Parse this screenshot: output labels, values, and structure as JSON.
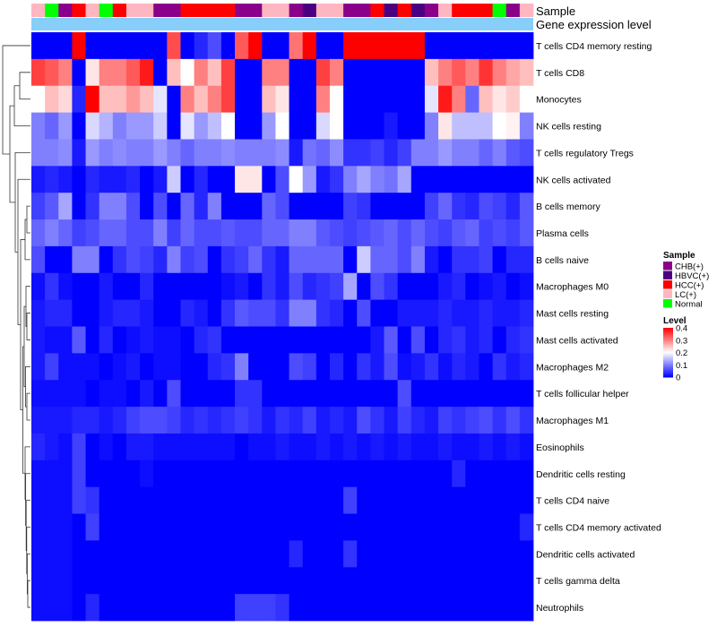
{
  "chart_data": {
    "type": "heatmap",
    "title": "",
    "annotation_tracks": [
      {
        "name": "Sample",
        "values": [
          "LC(+)",
          "Normal",
          "CHB(+)",
          "HCC(+)",
          "LC(+)",
          "Normal",
          "HCC(+)",
          "LC(+)",
          "LC(+)",
          "CHB(+)",
          "CHB(+)",
          "HCC(+)",
          "HCC(+)",
          "HCC(+)",
          "HCC(+)",
          "CHB(+)",
          "CHB(+)",
          "LC(+)",
          "LC(+)",
          "CHB(+)",
          "HBVC(+)",
          "LC(+)",
          "LC(+)",
          "CHB(+)",
          "CHB(+)",
          "HCC(+)",
          "HBVC(+)",
          "HCC(+)",
          "HBVC(+)",
          "CHB(+)",
          "LC(+)",
          "HCC(+)",
          "HCC(+)",
          "HCC(+)",
          "Normal",
          "CHB(+)",
          "LC(+)"
        ]
      },
      {
        "name": "Gene expression level",
        "constant_color": "#87cefa"
      }
    ],
    "rows": [
      "T cells CD4 memory resting",
      "T cells CD8",
      "Monocytes",
      "NK cells resting",
      "T cells regulatory  Tregs",
      "NK cells activated",
      "B cells memory",
      "Plasma cells",
      "B cells naive",
      "Macrophages M0",
      "Mast cells resting",
      "Mast cells activated",
      "Macrophages M2",
      "T cells follicular helper",
      "Macrophages M1",
      "Eosinophils",
      "Dendritic cells resting",
      "T cells CD4 naive",
      "T cells CD4 memory activated",
      "Dendritic cells activated",
      "T cells gamma delta",
      "Neutrophils"
    ],
    "n_columns": 37,
    "values": [
      [
        0,
        0,
        0,
        0.4,
        0,
        0,
        0,
        0,
        0,
        0,
        0.34,
        0,
        0.03,
        0.06,
        0,
        0.33,
        0.4,
        0,
        0,
        0.31,
        0.4,
        0,
        0,
        0.4,
        0.4,
        0.4,
        0.4,
        0.4,
        0.4,
        0,
        0,
        0,
        0,
        0,
        0,
        0,
        0
      ],
      [
        0.35,
        0.33,
        0.3,
        0,
        0.22,
        0.3,
        0.3,
        0.33,
        0.38,
        0,
        0.25,
        0.2,
        0.3,
        0.25,
        0.35,
        0,
        0,
        0.3,
        0.3,
        0,
        0,
        0.35,
        0.3,
        0,
        0,
        0,
        0,
        0,
        0,
        0.25,
        0.3,
        0.33,
        0.3,
        0.36,
        0.3,
        0.27,
        0.25
      ],
      [
        0.2,
        0.25,
        0.23,
        0.03,
        0.4,
        0.25,
        0.25,
        0.28,
        0.25,
        0.18,
        0,
        0.3,
        0.25,
        0.3,
        0.35,
        0,
        0,
        0.25,
        0.22,
        0,
        0,
        0.3,
        0.2,
        0,
        0,
        0,
        0,
        0,
        0,
        0.18,
        0.38,
        0.3,
        0.08,
        0.25,
        0.22,
        0.24,
        0.2
      ],
      [
        0.1,
        0.08,
        0.12,
        0,
        0.17,
        0.14,
        0.1,
        0.12,
        0.12,
        0.16,
        0,
        0.18,
        0.12,
        0.15,
        0.2,
        0,
        0,
        0.12,
        0.2,
        0,
        0,
        0.17,
        0.2,
        0,
        0,
        0,
        0.02,
        0,
        0,
        0.1,
        0.22,
        0.15,
        0.15,
        0.15,
        0.2,
        0.21,
        0.1
      ],
      [
        0.1,
        0.1,
        0.11,
        0.02,
        0.12,
        0.1,
        0.11,
        0.1,
        0.1,
        0.12,
        0.1,
        0.08,
        0.1,
        0.1,
        0.11,
        0.1,
        0.1,
        0.1,
        0.11,
        0.02,
        0.09,
        0.08,
        0.11,
        0.04,
        0.04,
        0.05,
        0.03,
        0.05,
        0.1,
        0.1,
        0.12,
        0.1,
        0.1,
        0.08,
        0.1,
        0.07,
        0.06
      ],
      [
        0.02,
        0.03,
        0.02,
        0,
        0.03,
        0.02,
        0.02,
        0.03,
        0,
        0.02,
        0.16,
        0,
        0.03,
        0,
        0,
        0.22,
        0.22,
        0,
        0.06,
        0.2,
        0.12,
        0.02,
        0.04,
        0.1,
        0.13,
        0.1,
        0.09,
        0.13,
        0,
        0,
        0,
        0,
        0,
        0,
        0,
        0,
        0
      ],
      [
        0.05,
        0.07,
        0.13,
        0,
        0.04,
        0.1,
        0.1,
        0.06,
        0,
        0.06,
        0,
        0.08,
        0.03,
        0.1,
        0,
        0,
        0,
        0.08,
        0.06,
        0,
        0,
        0,
        0,
        0.05,
        0.04,
        0,
        0,
        0,
        0,
        0.05,
        0.08,
        0.04,
        0.03,
        0.06,
        0.05,
        0.03,
        0.07
      ],
      [
        0.08,
        0.1,
        0.08,
        0.05,
        0.06,
        0.08,
        0.08,
        0.06,
        0.06,
        0.1,
        0.05,
        0.08,
        0.06,
        0.06,
        0.07,
        0.06,
        0.06,
        0.08,
        0.08,
        0.1,
        0.1,
        0.07,
        0.06,
        0.05,
        0.06,
        0.07,
        0.08,
        0.06,
        0.08,
        0.06,
        0.05,
        0.07,
        0.08,
        0.05,
        0.06,
        0.05,
        0.07
      ],
      [
        0.06,
        0,
        0,
        0.1,
        0.1,
        0,
        0.04,
        0.06,
        0.05,
        0.03,
        0.1,
        0.05,
        0.06,
        0,
        0.04,
        0.05,
        0.08,
        0.04,
        0.02,
        0.08,
        0.08,
        0.08,
        0.08,
        0,
        0.16,
        0.08,
        0.08,
        0.06,
        0.1,
        0.02,
        0,
        0.04,
        0.04,
        0.05,
        0,
        0.03,
        0.03
      ],
      [
        0.01,
        0.04,
        0.01,
        0,
        0,
        0.02,
        0,
        0,
        0.03,
        0,
        0,
        0,
        0,
        0,
        0.01,
        0.02,
        0,
        0.04,
        0.02,
        0.06,
        0.03,
        0.04,
        0.05,
        0.13,
        0,
        0.06,
        0.04,
        0,
        0,
        0,
        0.02,
        0.03,
        0,
        0.01,
        0.02,
        0,
        0.01
      ],
      [
        0.02,
        0.03,
        0.03,
        0,
        0,
        0.02,
        0.03,
        0.03,
        0.02,
        0,
        0,
        0.03,
        0.02,
        0,
        0.04,
        0.07,
        0.06,
        0.06,
        0.04,
        0.1,
        0.1,
        0.04,
        0.03,
        0,
        0.06,
        0,
        0,
        0.02,
        0.02,
        0.02,
        0.03,
        0.02,
        0.02,
        0.03,
        0.02,
        0.02,
        0.03
      ],
      [
        0.02,
        0.01,
        0.01,
        0.07,
        0,
        0.03,
        0,
        0.01,
        0.02,
        0.01,
        0.01,
        0,
        0.03,
        0.04,
        0,
        0,
        0,
        0,
        0,
        0,
        0,
        0,
        0,
        0,
        0,
        0.02,
        0.07,
        0,
        0.06,
        0,
        0.03,
        0.04,
        0.02,
        0.03,
        0,
        0.03,
        0.04
      ],
      [
        0.02,
        0.05,
        0.01,
        0.01,
        0.01,
        0,
        0.01,
        0.02,
        0,
        0.01,
        0.01,
        0,
        0,
        0.03,
        0.04,
        0.1,
        0,
        0,
        0,
        0.06,
        0.05,
        0,
        0.03,
        0,
        0.04,
        0.02,
        0.06,
        0.01,
        0.02,
        0.04,
        0.01,
        0.03,
        0.02,
        0,
        0.04,
        0.02,
        0.03
      ],
      [
        0.01,
        0.01,
        0.01,
        0.01,
        0,
        0.01,
        0.01,
        0,
        0.02,
        0,
        0.06,
        0,
        0,
        0,
        0,
        0.04,
        0.04,
        0,
        0,
        0,
        0,
        0,
        0,
        0,
        0,
        0,
        0,
        0.06,
        0,
        0,
        0,
        0,
        0,
        0,
        0,
        0,
        0
      ],
      [
        0.02,
        0.02,
        0.02,
        0.03,
        0.03,
        0.02,
        0.03,
        0.05,
        0.06,
        0.06,
        0.05,
        0.03,
        0.04,
        0.03,
        0.04,
        0.05,
        0.04,
        0.02,
        0.04,
        0.03,
        0.05,
        0.02,
        0.03,
        0.02,
        0.06,
        0.04,
        0.02,
        0.05,
        0.03,
        0.02,
        0.05,
        0.04,
        0.05,
        0.06,
        0.04,
        0.06,
        0.04
      ],
      [
        0.03,
        0.02,
        0.01,
        0.05,
        0,
        0.01,
        0,
        0.02,
        0.02,
        0.01,
        0.01,
        0.01,
        0.01,
        0.01,
        0.01,
        0,
        0.01,
        0.01,
        0.02,
        0.01,
        0.01,
        0.02,
        0.01,
        0.02,
        0.01,
        0.02,
        0.01,
        0.02,
        0.01,
        0.01,
        0.02,
        0.01,
        0.01,
        0.02,
        0.01,
        0.02,
        0.01
      ],
      [
        0.01,
        0.01,
        0.01,
        0.05,
        0,
        0,
        0,
        0,
        0.01,
        0,
        0,
        0,
        0,
        0,
        0,
        0,
        0,
        0,
        0,
        0,
        0,
        0,
        0,
        0,
        0,
        0,
        0,
        0,
        0,
        0,
        0,
        0.03,
        0,
        0,
        0,
        0,
        0
      ],
      [
        0.01,
        0.01,
        0.01,
        0.05,
        0.04,
        0,
        0,
        0,
        0,
        0,
        0,
        0,
        0,
        0,
        0,
        0,
        0,
        0,
        0,
        0,
        0,
        0,
        0,
        0.05,
        0,
        0,
        0,
        0,
        0,
        0,
        0,
        0,
        0,
        0,
        0,
        0,
        0
      ],
      [
        0.01,
        0.01,
        0.01,
        0,
        0.05,
        0,
        0,
        0,
        0,
        0,
        0,
        0,
        0,
        0,
        0,
        0,
        0,
        0,
        0,
        0,
        0,
        0,
        0,
        0,
        0,
        0,
        0,
        0,
        0,
        0,
        0,
        0,
        0,
        0,
        0,
        0,
        0.03
      ],
      [
        0.01,
        0.01,
        0.01,
        0,
        0,
        0,
        0,
        0,
        0,
        0,
        0,
        0,
        0,
        0,
        0,
        0,
        0,
        0,
        0,
        0.03,
        0,
        0,
        0,
        0.04,
        0,
        0,
        0,
        0,
        0,
        0,
        0,
        0,
        0,
        0,
        0,
        0,
        0
      ],
      [
        0.01,
        0.01,
        0.01,
        0,
        0,
        0,
        0,
        0,
        0,
        0,
        0,
        0,
        0,
        0,
        0,
        0,
        0,
        0,
        0,
        0,
        0,
        0,
        0,
        0,
        0,
        0,
        0,
        0,
        0,
        0,
        0,
        0,
        0,
        0,
        0,
        0,
        0
      ],
      [
        0.01,
        0.01,
        0.01,
        0,
        0.03,
        0,
        0,
        0,
        0,
        0,
        0,
        0,
        0,
        0,
        0,
        0.05,
        0.05,
        0.05,
        0.04,
        0,
        0,
        0,
        0,
        0,
        0,
        0,
        0,
        0,
        0,
        0,
        0,
        0,
        0,
        0,
        0,
        0,
        0
      ]
    ],
    "color_scale": {
      "min": 0,
      "max": 0.4,
      "low": "#0000ff",
      "mid": "#ffffff",
      "high": "#ff0000"
    },
    "legends": {
      "sample": {
        "title": "Sample",
        "entries": [
          {
            "label": "CHB(+)",
            "color": "#8b008b"
          },
          {
            "label": "HBVC(+)",
            "color": "#4b0082"
          },
          {
            "label": "HCC(+)",
            "color": "#ff0000"
          },
          {
            "label": "LC(+)",
            "color": "#ffb6c1"
          },
          {
            "label": "Normal",
            "color": "#00ff00"
          }
        ]
      },
      "level": {
        "title": "Level",
        "ticks": [
          "0.4",
          "0.3",
          "0.2",
          "0.1",
          "0"
        ],
        "tick_values": [
          0.4,
          0.3,
          0.2,
          0.1,
          0
        ]
      }
    },
    "row_dendrogram": true
  }
}
